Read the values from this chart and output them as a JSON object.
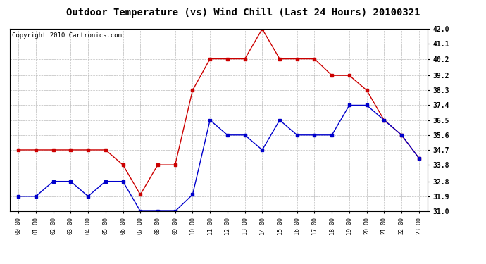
{
  "title": "Outdoor Temperature (vs) Wind Chill (Last 24 Hours) 20100321",
  "copyright": "Copyright 2010 Cartronics.com",
  "x_labels": [
    "00:00",
    "01:00",
    "02:00",
    "03:00",
    "04:00",
    "05:00",
    "06:00",
    "07:00",
    "08:00",
    "09:00",
    "10:00",
    "11:00",
    "12:00",
    "13:00",
    "14:00",
    "15:00",
    "16:00",
    "17:00",
    "18:00",
    "19:00",
    "20:00",
    "21:00",
    "22:00",
    "23:00"
  ],
  "y_ticks": [
    31.0,
    31.9,
    32.8,
    33.8,
    34.7,
    35.6,
    36.5,
    37.4,
    38.3,
    39.2,
    40.2,
    41.1,
    42.0
  ],
  "y_min": 31.0,
  "y_max": 42.0,
  "red_data": [
    34.7,
    34.7,
    34.7,
    34.7,
    34.7,
    34.7,
    33.8,
    32.0,
    33.8,
    33.8,
    38.3,
    40.2,
    40.2,
    40.2,
    42.0,
    40.2,
    40.2,
    40.2,
    39.2,
    39.2,
    38.3,
    36.5,
    35.6,
    34.2
  ],
  "blue_data": [
    31.9,
    31.9,
    32.8,
    32.8,
    31.9,
    32.8,
    32.8,
    31.0,
    31.0,
    31.0,
    32.0,
    36.5,
    35.6,
    35.6,
    34.7,
    36.5,
    35.6,
    35.6,
    35.6,
    37.4,
    37.4,
    36.5,
    35.6,
    34.2
  ],
  "red_color": "#cc0000",
  "blue_color": "#0000cc",
  "bg_color": "#ffffff",
  "grid_color": "#bbbbbb",
  "title_fontsize": 10,
  "copyright_fontsize": 6.5
}
